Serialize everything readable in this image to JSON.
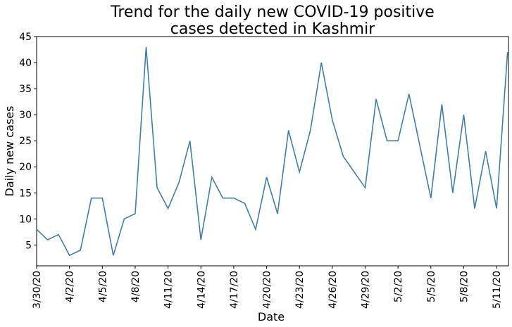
{
  "chart_data": {
    "type": "line",
    "title": [
      "Trend for the daily new COVID-19 positive",
      "cases detected in Kashmir"
    ],
    "xlabel": "Date",
    "ylabel": "Daily new cases",
    "x": [
      "3/30/20",
      "3/31/20",
      "4/1/20",
      "4/2/20",
      "4/3/20",
      "4/4/20",
      "4/5/20",
      "4/6/20",
      "4/7/20",
      "4/8/20",
      "4/9/20",
      "4/10/20",
      "4/11/20",
      "4/12/20",
      "4/13/20",
      "4/14/20",
      "4/15/20",
      "4/16/20",
      "4/17/20",
      "4/18/20",
      "4/19/20",
      "4/20/20",
      "4/21/20",
      "4/22/20",
      "4/23/20",
      "4/24/20",
      "4/25/20",
      "4/26/20",
      "4/27/20",
      "4/28/20",
      "4/29/20",
      "4/30/20",
      "5/1/20",
      "5/2/20",
      "5/3/20",
      "5/4/20",
      "5/5/20",
      "5/6/20",
      "5/7/20",
      "5/8/20",
      "5/9/20",
      "5/10/20",
      "5/11/20",
      "5/12/20"
    ],
    "series": [
      {
        "name": "Daily new cases",
        "color": "#3f7fae",
        "values": [
          8,
          6,
          7,
          3,
          4,
          14,
          14,
          3,
          10,
          11,
          43,
          16,
          12,
          17,
          25,
          6,
          18,
          14,
          14,
          13,
          8,
          18,
          11,
          27,
          19,
          27,
          40,
          29,
          22,
          19,
          16,
          33,
          25,
          25,
          34,
          24,
          14,
          32,
          15,
          30,
          12,
          23,
          12,
          42
        ]
      }
    ],
    "xticks": [
      "3/30/20",
      "4/2/20",
      "4/5/20",
      "4/8/20",
      "4/11/20",
      "4/14/20",
      "4/17/20",
      "4/20/20",
      "4/23/20",
      "4/26/20",
      "4/29/20",
      "5/2/20",
      "5/5/20",
      "5/8/20",
      "5/11/20"
    ],
    "ylim": [
      1,
      45
    ],
    "yticks": [
      5,
      10,
      15,
      20,
      25,
      30,
      35,
      40,
      45
    ]
  }
}
